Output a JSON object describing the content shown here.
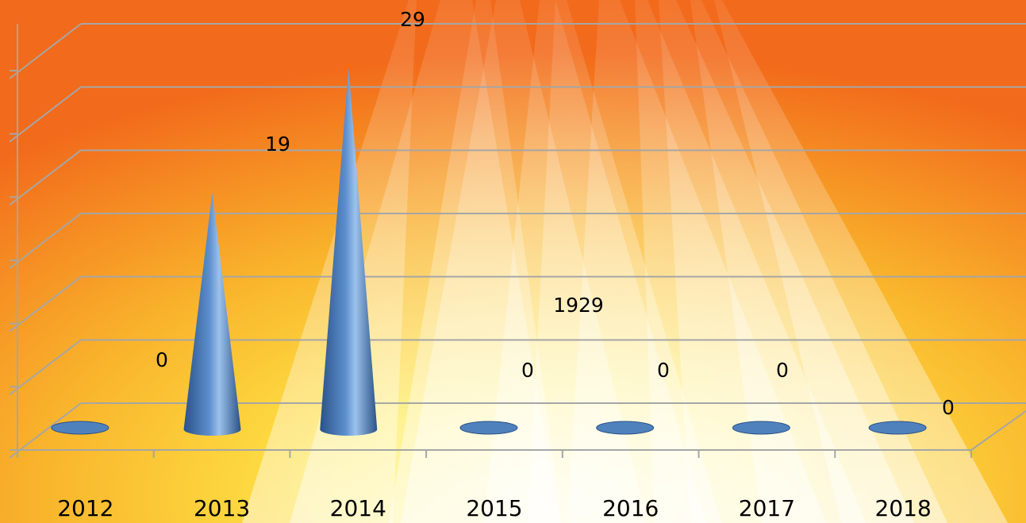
{
  "chart_data": {
    "type": "bar",
    "bar_shape": "cone-3d",
    "categories": [
      "2012",
      "2013",
      "2014",
      "2015",
      "2016",
      "2017",
      "2018"
    ],
    "values": [
      0,
      19,
      29,
      0,
      0,
      0,
      0
    ],
    "data_labels": [
      "0",
      "19",
      "29",
      "0",
      "0",
      "0",
      "0"
    ],
    "extra_annotation": "1929",
    "ylim": [
      0,
      30
    ],
    "grid": true,
    "legend": "none",
    "colors": {
      "bar": "#4f81bd",
      "bar_dark": "#2a5287",
      "bar_light": "#9cc2ec",
      "gridline": "#a6a6a6",
      "background_outer": "#f26a1b",
      "background_inner": "#ffe94a"
    }
  }
}
